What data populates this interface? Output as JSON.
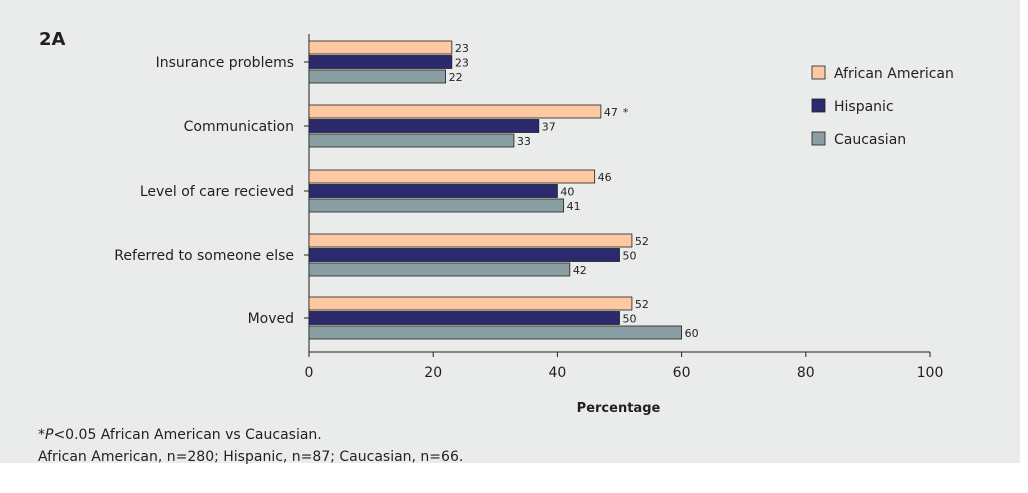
{
  "panel_label": "2A",
  "chart_data": {
    "type": "bar",
    "orientation": "horizontal",
    "categories": [
      "Insurance problems",
      "Communication",
      "Level of care recieved",
      "Referred to someone else",
      "Moved"
    ],
    "series": [
      {
        "name": "African American",
        "values": [
          23,
          47,
          46,
          52,
          52
        ],
        "color": "#fcc9a2"
      },
      {
        "name": "Hispanic",
        "values": [
          23,
          37,
          40,
          50,
          50
        ],
        "color": "#2b2a6f"
      },
      {
        "name": "Caucasian",
        "values": [
          22,
          33,
          41,
          42,
          60
        ],
        "color": "#8a9fa4"
      }
    ],
    "annotations": [
      {
        "category": "Communication",
        "series": "African American",
        "text": "*"
      }
    ],
    "xlabel": "Percentage",
    "ylabel": "",
    "xlim": [
      0,
      100
    ],
    "xticks": [
      0,
      20,
      40,
      60,
      80,
      100
    ],
    "grid": false,
    "legend_position": "top-right"
  },
  "footnote": {
    "line1_symbol": "*",
    "line1_italic": "P",
    "line1_text": "<0.05 African American vs Caucasian.",
    "line2": "African American, n=280; Hispanic, n=87; Caucasian, n=66."
  }
}
